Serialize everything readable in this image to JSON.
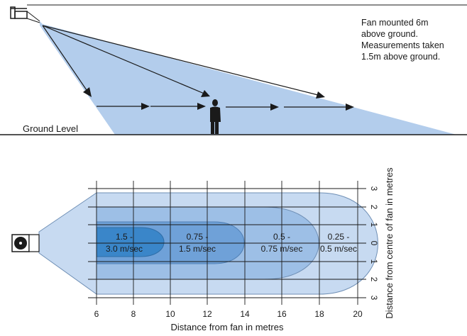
{
  "side_view": {
    "note_lines": [
      "Fan mounted 6m",
      "above ground.",
      "Measurements taken",
      "1.5m above ground."
    ],
    "ground_label": "Ground Level"
  },
  "plan_view": {
    "x_axis": {
      "ticks": [
        "6",
        "8",
        "10",
        "12",
        "14",
        "16",
        "18",
        "20"
      ],
      "label": "Distance from fan in metres"
    },
    "y_axis": {
      "ticks": [
        "3",
        "2",
        "1",
        "0",
        "1",
        "2",
        "3"
      ],
      "label": "Distance from centre of fan in metres"
    },
    "zones": [
      {
        "line1": "1.5 -",
        "line2": "3.0 m/sec"
      },
      {
        "line1": "0.75 -",
        "line2": "1.5 m/sec"
      },
      {
        "line1": "0.5 -",
        "line2": "0.75 m/sec"
      },
      {
        "line1": "0.25 -",
        "line2": "0.5 m/sec"
      }
    ]
  },
  "colors": {
    "zone_light": "#c7daf1",
    "zone_2": "#9dbfe6",
    "zone_3": "#6fa1d8",
    "zone_core": "#3a86c9",
    "beam": "#b3cdec",
    "line": "#1a1a1a"
  }
}
